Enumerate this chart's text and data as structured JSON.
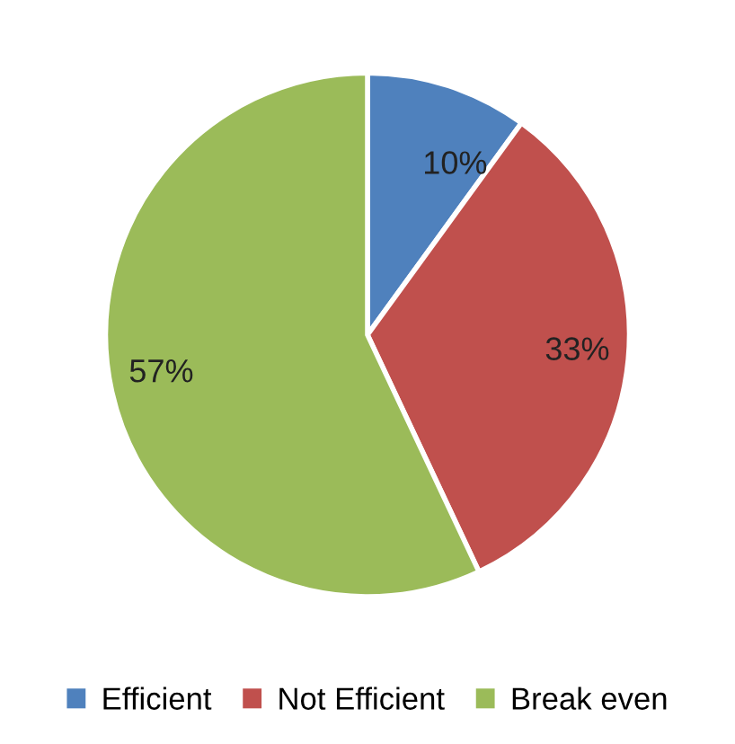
{
  "chart_data": {
    "type": "pie",
    "categories": [
      "Efficient",
      "Not Efficient",
      "Break even"
    ],
    "values": [
      10,
      33,
      57
    ],
    "colors": [
      "#4f81bd",
      "#c0504d",
      "#9bbb59"
    ],
    "value_labels": [
      "10%",
      "33%",
      "57%"
    ],
    "legend": "bottom"
  }
}
